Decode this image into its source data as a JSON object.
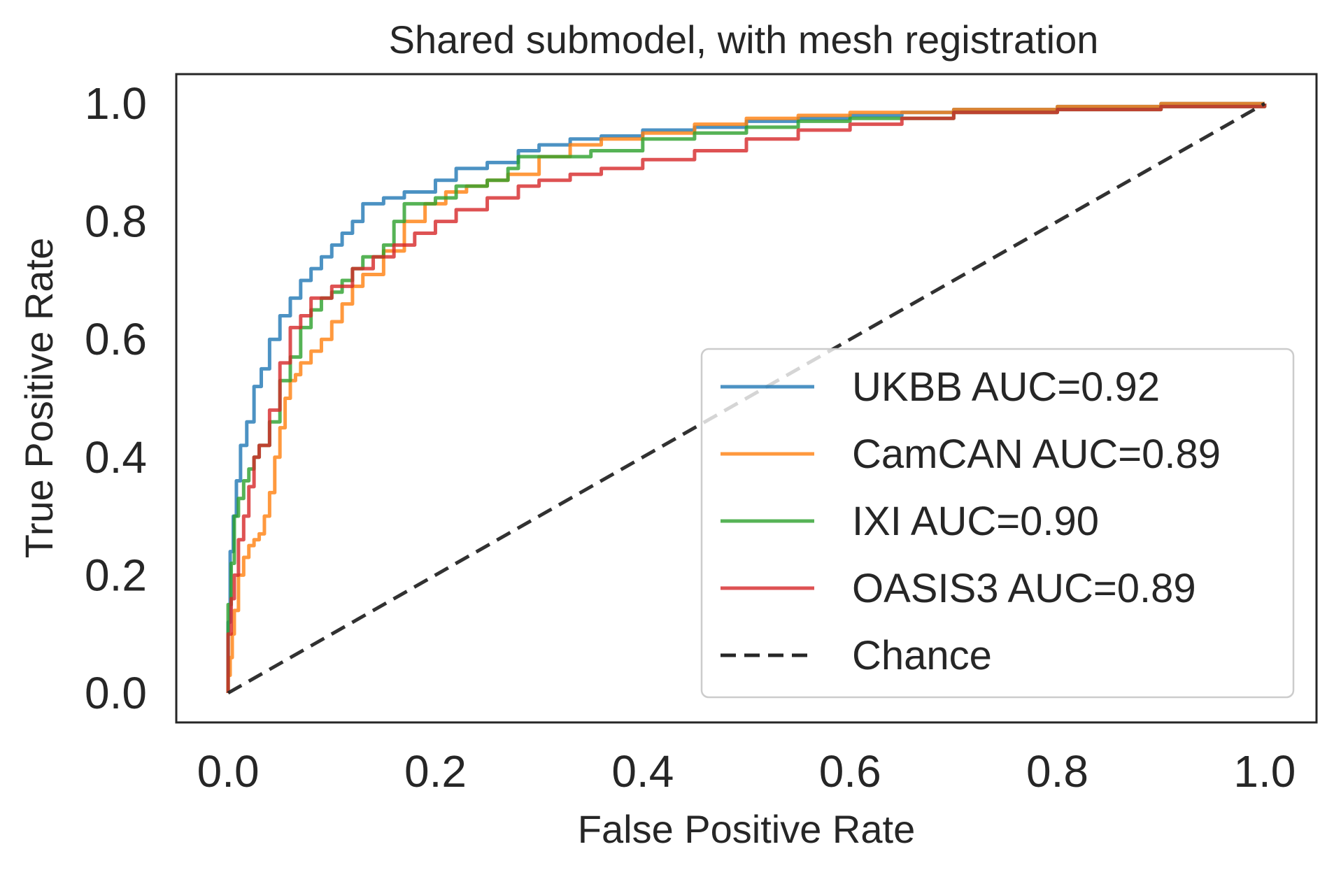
{
  "chart_data": {
    "type": "line",
    "title": "Shared submodel, with mesh registration",
    "xlabel": "False Positive Rate",
    "ylabel": "True Positive Rate",
    "xlim": [
      -0.05,
      1.05
    ],
    "ylim": [
      -0.05,
      1.05
    ],
    "xticks": [
      0.0,
      0.2,
      0.4,
      0.6,
      0.8,
      1.0
    ],
    "yticks": [
      0.0,
      0.2,
      0.4,
      0.6,
      0.8,
      1.0
    ],
    "tick_labels": [
      "0.0",
      "0.2",
      "0.4",
      "0.6",
      "0.8",
      "1.0"
    ],
    "grid": false,
    "legend_position": "lower-right",
    "series": [
      {
        "name": "UKBB AUC=0.92",
        "color": "#1f77b4",
        "style": "solid",
        "x": [
          0.0,
          0.0,
          0.002,
          0.005,
          0.008,
          0.012,
          0.018,
          0.025,
          0.032,
          0.04,
          0.05,
          0.06,
          0.07,
          0.08,
          0.09,
          0.1,
          0.11,
          0.12,
          0.13,
          0.15,
          0.17,
          0.2,
          0.22,
          0.25,
          0.28,
          0.3,
          0.33,
          0.36,
          0.4,
          0.45,
          0.5,
          0.55,
          0.6,
          0.65,
          0.7,
          0.75,
          0.8,
          0.85,
          0.9,
          0.95,
          1.0
        ],
        "y": [
          0.0,
          0.12,
          0.24,
          0.3,
          0.36,
          0.42,
          0.46,
          0.52,
          0.55,
          0.6,
          0.64,
          0.67,
          0.7,
          0.72,
          0.74,
          0.76,
          0.78,
          0.8,
          0.83,
          0.84,
          0.85,
          0.87,
          0.89,
          0.9,
          0.92,
          0.93,
          0.94,
          0.945,
          0.955,
          0.96,
          0.97,
          0.975,
          0.98,
          0.985,
          0.99,
          0.99,
          0.995,
          0.995,
          1.0,
          1.0,
          1.0
        ]
      },
      {
        "name": "CamCAN AUC=0.89",
        "color": "#ff7f0e",
        "style": "solid",
        "x": [
          0.0,
          0.0,
          0.002,
          0.004,
          0.006,
          0.01,
          0.015,
          0.02,
          0.025,
          0.03,
          0.035,
          0.04,
          0.045,
          0.05,
          0.055,
          0.06,
          0.065,
          0.07,
          0.08,
          0.09,
          0.1,
          0.11,
          0.12,
          0.13,
          0.15,
          0.17,
          0.19,
          0.21,
          0.23,
          0.25,
          0.27,
          0.3,
          0.33,
          0.36,
          0.4,
          0.45,
          0.5,
          0.55,
          0.6,
          0.7,
          0.8,
          0.9,
          1.0
        ],
        "y": [
          0.0,
          0.03,
          0.06,
          0.1,
          0.14,
          0.2,
          0.23,
          0.25,
          0.26,
          0.27,
          0.3,
          0.34,
          0.4,
          0.45,
          0.5,
          0.53,
          0.54,
          0.56,
          0.58,
          0.6,
          0.63,
          0.66,
          0.69,
          0.71,
          0.75,
          0.8,
          0.83,
          0.85,
          0.86,
          0.87,
          0.88,
          0.91,
          0.93,
          0.94,
          0.95,
          0.965,
          0.975,
          0.98,
          0.985,
          0.99,
          0.995,
          1.0,
          1.0
        ]
      },
      {
        "name": "IXI AUC=0.90",
        "color": "#2ca02c",
        "style": "solid",
        "x": [
          0.0,
          0.0,
          0.003,
          0.006,
          0.01,
          0.015,
          0.02,
          0.025,
          0.03,
          0.04,
          0.05,
          0.06,
          0.07,
          0.08,
          0.09,
          0.1,
          0.11,
          0.12,
          0.13,
          0.15,
          0.16,
          0.17,
          0.19,
          0.2,
          0.22,
          0.25,
          0.27,
          0.28,
          0.3,
          0.35,
          0.4,
          0.45,
          0.5,
          0.55,
          0.6,
          0.7,
          0.8,
          0.9,
          1.0
        ],
        "y": [
          0.0,
          0.15,
          0.22,
          0.3,
          0.33,
          0.36,
          0.38,
          0.4,
          0.42,
          0.46,
          0.53,
          0.57,
          0.62,
          0.65,
          0.67,
          0.68,
          0.7,
          0.72,
          0.74,
          0.76,
          0.8,
          0.83,
          0.83,
          0.84,
          0.86,
          0.87,
          0.89,
          0.91,
          0.91,
          0.92,
          0.94,
          0.95,
          0.96,
          0.97,
          0.975,
          0.985,
          0.99,
          0.995,
          1.0
        ]
      },
      {
        "name": "OASIS3 AUC=0.89",
        "color": "#d62728",
        "style": "solid",
        "x": [
          0.0,
          0.0,
          0.003,
          0.006,
          0.01,
          0.015,
          0.02,
          0.025,
          0.03,
          0.04,
          0.05,
          0.06,
          0.07,
          0.08,
          0.1,
          0.12,
          0.14,
          0.16,
          0.18,
          0.2,
          0.22,
          0.25,
          0.28,
          0.3,
          0.33,
          0.36,
          0.4,
          0.45,
          0.5,
          0.55,
          0.6,
          0.65,
          0.7,
          0.8,
          0.9,
          1.0
        ],
        "y": [
          0.0,
          0.1,
          0.16,
          0.2,
          0.26,
          0.3,
          0.35,
          0.4,
          0.42,
          0.48,
          0.56,
          0.62,
          0.64,
          0.67,
          0.69,
          0.72,
          0.74,
          0.76,
          0.78,
          0.8,
          0.82,
          0.84,
          0.86,
          0.87,
          0.88,
          0.89,
          0.905,
          0.92,
          0.94,
          0.955,
          0.965,
          0.975,
          0.985,
          0.99,
          0.995,
          1.0
        ]
      },
      {
        "name": "Chance",
        "color": "#262626",
        "style": "dashed",
        "x": [
          0.0,
          1.0
        ],
        "y": [
          0.0,
          1.0
        ]
      }
    ]
  }
}
